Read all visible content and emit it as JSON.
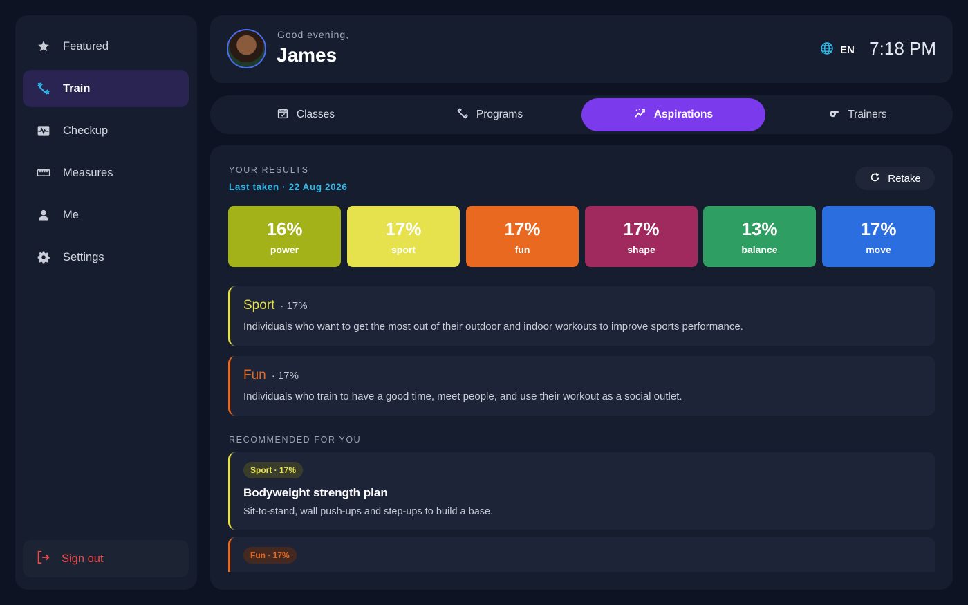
{
  "sidebar": {
    "items": [
      {
        "label": "Featured",
        "icon": "star-icon"
      },
      {
        "label": "Train",
        "icon": "dumbbell-icon",
        "active": true
      },
      {
        "label": "Checkup",
        "icon": "heartbeat-icon"
      },
      {
        "label": "Measures",
        "icon": "ruler-icon"
      },
      {
        "label": "Me",
        "icon": "user-icon"
      },
      {
        "label": "Settings",
        "icon": "gear-icon"
      }
    ],
    "signout_label": "Sign out"
  },
  "header": {
    "greeting": "Good evening,",
    "name": "James",
    "language": "EN",
    "time": "7:18 PM"
  },
  "tabs": [
    {
      "label": "Classes",
      "icon": "calendar-check-icon"
    },
    {
      "label": "Programs",
      "icon": "dumbbell-icon"
    },
    {
      "label": "Aspirations",
      "icon": "trend-icon",
      "active": true
    },
    {
      "label": "Trainers",
      "icon": "whistle-icon"
    }
  ],
  "results": {
    "section_label": "YOUR RESULTS",
    "last_taken": "Last taken · 22 Aug 2026",
    "retake_label": "Retake",
    "scores": [
      {
        "pct": "16%",
        "label": "power",
        "color": "#a4b21a"
      },
      {
        "pct": "17%",
        "label": "sport",
        "color": "#e6e24e"
      },
      {
        "pct": "17%",
        "label": "fun",
        "color": "#e8691f"
      },
      {
        "pct": "17%",
        "label": "shape",
        "color": "#a0295d"
      },
      {
        "pct": "13%",
        "label": "balance",
        "color": "#2f9e62"
      },
      {
        "pct": "17%",
        "label": "move",
        "color": "#2a6ee0"
      }
    ]
  },
  "descriptions": [
    {
      "name": "Sport",
      "pct": "· 17%",
      "text": "Individuals who want to get the most out of their outdoor and indoor workouts to improve sports performance.",
      "color": "#e6e24e"
    },
    {
      "name": "Fun",
      "pct": "· 17%",
      "text": "Individuals who train to have a good time, meet people, and use their workout as a social outlet.",
      "color": "#e8691f"
    }
  ],
  "recommended": {
    "section_label": "RECOMMENDED FOR YOU",
    "items": [
      {
        "tag": "Sport · 17%",
        "title": "Bodyweight strength plan",
        "text": "Sit-to-stand, wall push-ups and step-ups to build a base.",
        "color": "#e6e24e",
        "tag_bg": "#3b3d2c"
      },
      {
        "tag": "Fun · 17%",
        "title": "",
        "text": "",
        "color": "#e8691f",
        "tag_bg": "#43291f"
      }
    ]
  }
}
